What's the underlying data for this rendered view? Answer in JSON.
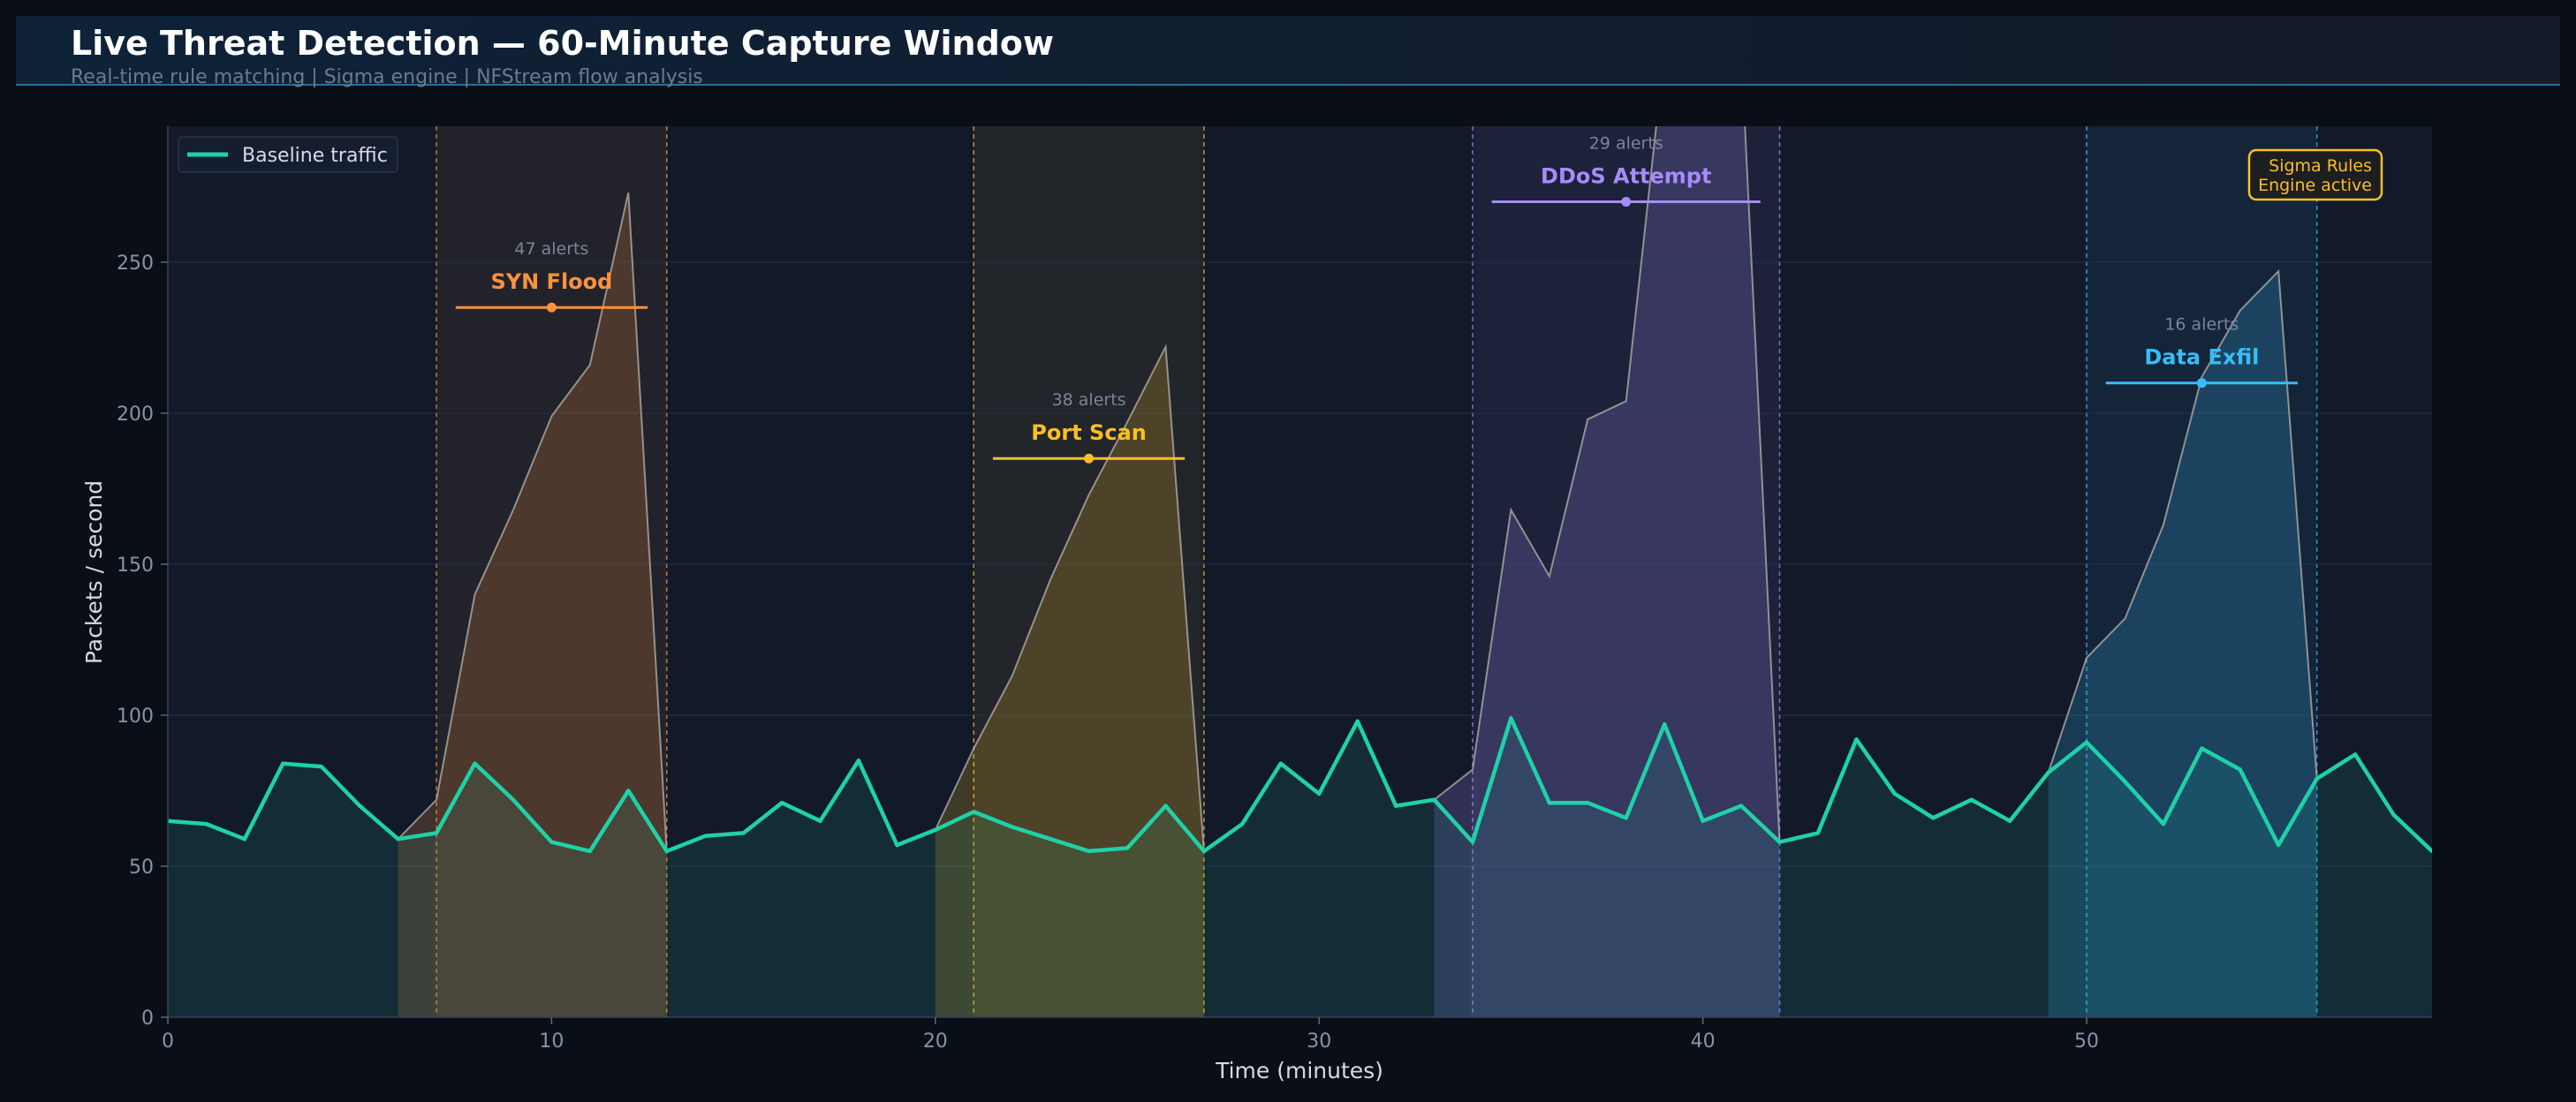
{
  "header": {
    "title": "Live Threat Detection  —  60-Minute Capture Window",
    "subtitle": "Real-time rule matching  |  Sigma engine  |  NFStream flow analysis"
  },
  "colors": {
    "background": "#0a0e16",
    "plot_bg": "#121a2a",
    "baseline": "#1fd1a8",
    "syn_flood": "#fb923c",
    "port_scan": "#fbbf24",
    "ddos": "#a78bfa",
    "data_exfil": "#38bdf8",
    "badge": "#fbbf24"
  },
  "chart_data": {
    "type": "line",
    "xlabel": "Time (minutes)",
    "ylabel": "Packets / second",
    "xlim": [
      0,
      59
    ],
    "ylim": [
      0,
      295
    ],
    "xticks": [
      0,
      10,
      20,
      30,
      40,
      50
    ],
    "yticks": [
      0,
      50,
      100,
      150,
      200,
      250
    ],
    "grid": true,
    "legend": {
      "placement": "top-left",
      "entries": [
        "Baseline traffic"
      ]
    },
    "series": [
      {
        "name": "Baseline traffic",
        "x": [
          0,
          1,
          2,
          3,
          4,
          5,
          6,
          7,
          8,
          9,
          10,
          11,
          12,
          13,
          14,
          15,
          16,
          17,
          18,
          19,
          20,
          21,
          22,
          23,
          24,
          25,
          26,
          27,
          28,
          29,
          30,
          31,
          32,
          33,
          34,
          35,
          36,
          37,
          38,
          39,
          40,
          41,
          42,
          43,
          44,
          45,
          46,
          47,
          48,
          49,
          50,
          51,
          52,
          53,
          54,
          55,
          56,
          57,
          58,
          59
        ],
        "values": [
          65,
          64,
          59,
          84,
          83,
          70,
          59,
          61,
          84,
          72,
          58,
          55,
          75,
          55,
          60,
          61,
          71,
          65,
          85,
          57,
          62,
          68,
          63,
          59,
          55,
          56,
          70,
          55,
          64,
          84,
          74,
          98,
          70,
          72,
          58,
          99,
          71,
          71,
          66,
          97,
          65,
          70,
          58,
          61,
          92,
          74,
          66,
          72,
          65,
          81,
          91,
          78,
          64,
          89,
          82,
          57,
          79,
          87,
          67,
          55
        ]
      },
      {
        "name": "SYN Flood",
        "x": [
          6,
          7,
          8,
          9,
          10,
          11,
          12,
          13
        ],
        "values": [
          59,
          72,
          140,
          168,
          199,
          216,
          273,
          55
        ]
      },
      {
        "name": "Port Scan",
        "x": [
          20,
          21,
          22,
          23,
          24,
          25,
          26,
          27
        ],
        "values": [
          62,
          89,
          113,
          145,
          173,
          197,
          222,
          55
        ]
      },
      {
        "name": "DDoS Attempt",
        "x": [
          33,
          34,
          35,
          36,
          37,
          38,
          39,
          40,
          41,
          42
        ],
        "values": [
          72,
          82,
          168,
          146,
          198,
          204,
          320,
          320,
          320,
          58
        ]
      },
      {
        "name": "Data Exfil",
        "x": [
          49,
          50,
          51,
          52,
          53,
          54,
          55,
          56
        ],
        "values": [
          81,
          119,
          132,
          163,
          212,
          234,
          247,
          79
        ]
      }
    ],
    "attack_windows": [
      {
        "label": "SYN Flood",
        "alerts": "47 alerts",
        "start": 7,
        "end": 13,
        "color": "#fb923c",
        "marker_x": 10,
        "marker_y": 235,
        "bar_from": 7.5,
        "bar_to": 12.5
      },
      {
        "label": "Port Scan",
        "alerts": "38 alerts",
        "start": 21,
        "end": 27,
        "color": "#fbbf24",
        "marker_x": 24,
        "marker_y": 185,
        "bar_from": 21.5,
        "bar_to": 26.5
      },
      {
        "label": "DDoS Attempt",
        "alerts": "29 alerts",
        "start": 34,
        "end": 42,
        "color": "#a78bfa",
        "marker_x": 38,
        "marker_y": 270,
        "bar_from": 34.5,
        "bar_to": 41.5
      },
      {
        "label": "Data Exfil",
        "alerts": "16 alerts",
        "start": 50,
        "end": 56,
        "color": "#38bdf8",
        "marker_x": 53,
        "marker_y": 210,
        "bar_from": 50.5,
        "bar_to": 55.5
      }
    ],
    "badge": {
      "lines": [
        "Sigma Rules",
        "Engine active"
      ],
      "placement": "top-right"
    }
  }
}
